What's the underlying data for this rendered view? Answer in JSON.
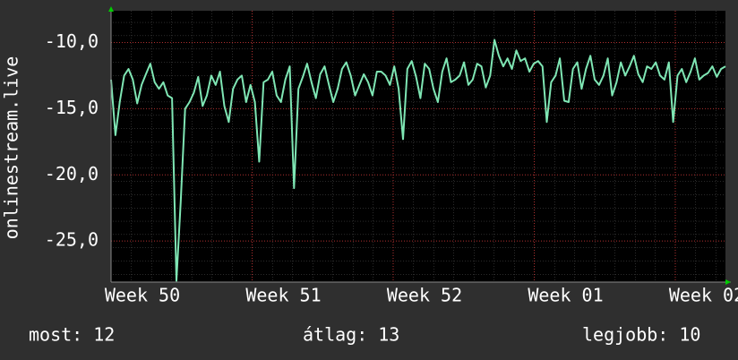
{
  "chart_data": {
    "type": "line",
    "y_label": "onlinestream.live",
    "xticks": [
      "Week 50",
      "Week 51",
      "Week 52",
      "Week 01",
      "Week 02"
    ],
    "ylim": [
      -28.1,
      -7.6
    ],
    "yticks": [
      {
        "value": -25,
        "label": "-25,0"
      },
      {
        "value": -20,
        "label": "-20,0"
      },
      {
        "value": -15,
        "label": "-15,0"
      },
      {
        "value": -10,
        "label": "-10,0"
      }
    ],
    "grid": true,
    "series": [
      {
        "name": "onlinestream.live",
        "color": "#7fe6b4",
        "values": [
          -12.8,
          -17,
          -14.5,
          -12.5,
          -12,
          -12.8,
          -14.6,
          -13.2,
          -12.4,
          -11.6,
          -13,
          -13.5,
          -13,
          -14,
          -14.2,
          -28,
          -22,
          -15,
          -14.5,
          -13.8,
          -12.6,
          -14.8,
          -14,
          -12.5,
          -13.2,
          -12.2,
          -14.8,
          -16,
          -13.5,
          -12.8,
          -12.5,
          -14.5,
          -13.2,
          -14.5,
          -19,
          -13,
          -12.8,
          -12.2,
          -14,
          -14.5,
          -12.8,
          -11.8,
          -21,
          -13.5,
          -12.6,
          -11.6,
          -13,
          -14.2,
          -12.4,
          -11.8,
          -13.2,
          -14.5,
          -13.5,
          -12,
          -11.5,
          -12.5,
          -14,
          -13.2,
          -12.4,
          -13,
          -14,
          -12.2,
          -12.2,
          -12.5,
          -13.2,
          -11.8,
          -13.5,
          -17.3,
          -12,
          -11.4,
          -12.6,
          -14.2,
          -11.6,
          -12,
          -13.5,
          -14.5,
          -12.2,
          -11.2,
          -13,
          -12.8,
          -12.5,
          -11.5,
          -13.2,
          -12.8,
          -11.6,
          -11.8,
          -13.4,
          -12.5,
          -9.8,
          -11,
          -11.8,
          -11.2,
          -12,
          -10.6,
          -11.4,
          -11.2,
          -12.2,
          -11.6,
          -11.4,
          -11.8,
          -16,
          -13,
          -12.5,
          -11.2,
          -14.4,
          -14.5,
          -12,
          -11.5,
          -13.5,
          -12,
          -11,
          -12.8,
          -13.2,
          -12.5,
          -11.2,
          -14,
          -13,
          -11.5,
          -12.5,
          -11.8,
          -11,
          -12.4,
          -13,
          -11.8,
          -12,
          -11.5,
          -12.5,
          -12.8,
          -11.5,
          -16,
          -12.5,
          -12,
          -13,
          -12.2,
          -11.2,
          -12.8,
          -12.5,
          -12.3,
          -11.8,
          -12.6,
          -12,
          -11.8
        ]
      }
    ],
    "legend": [
      {
        "label": "most:",
        "value": 12
      },
      {
        "label": "átlag:",
        "value": 13
      },
      {
        "label": "legjobb:",
        "value": 10
      }
    ]
  }
}
